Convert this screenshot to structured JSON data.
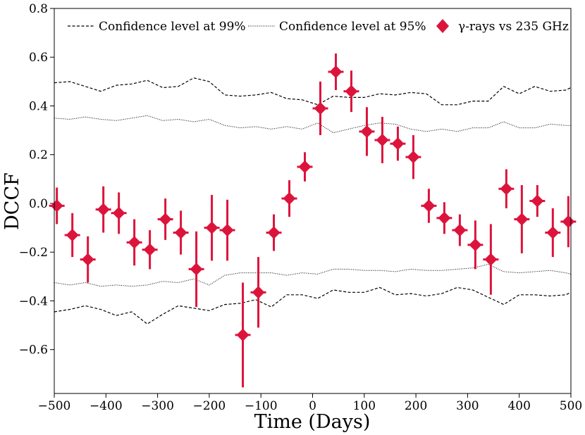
{
  "chart_data": {
    "type": "scatter",
    "title": "",
    "xlabel": "Time (Days)",
    "ylabel": "DCCF",
    "xlim": [
      -500,
      500
    ],
    "ylim": [
      -0.78,
      0.8
    ],
    "x_ticks": [
      -500,
      -400,
      -300,
      -200,
      -100,
      0,
      100,
      200,
      300,
      400,
      500
    ],
    "x_tick_labels": [
      "−500",
      "−400",
      "−300",
      "−200",
      "−100",
      "0",
      "100",
      "200",
      "300",
      "400",
      "500"
    ],
    "y_ticks": [
      -0.6,
      -0.4,
      -0.2,
      0.0,
      0.2,
      0.4,
      0.6,
      0.8
    ],
    "y_tick_labels": [
      "−0.6",
      "−0.4",
      "−0.2",
      "0.0",
      "0.2",
      "0.4",
      "0.6",
      "0.8"
    ],
    "grid": false,
    "legend_position": "top",
    "legend": [
      {
        "label": "Confidence level at 99%",
        "style": "dashed"
      },
      {
        "label": "Confidence level at 95%",
        "style": "dotted"
      },
      {
        "label": "γ-rays vs 235 GHz",
        "style": "diamond"
      }
    ],
    "colors": {
      "points": "#dc143c",
      "lines": "#000000"
    },
    "x_error_half_width": 15,
    "series": [
      {
        "name": "γ-rays vs 235 GHz",
        "x": [
          -495,
          -465,
          -435,
          -405,
          -375,
          -345,
          -315,
          -285,
          -255,
          -225,
          -195,
          -165,
          -135,
          -105,
          -75,
          -45,
          -15,
          15,
          45,
          75,
          105,
          135,
          165,
          195,
          225,
          255,
          285,
          315,
          345,
          375,
          405,
          435,
          465,
          495
        ],
        "y": [
          -0.01,
          -0.13,
          -0.23,
          -0.025,
          -0.04,
          -0.16,
          -0.19,
          -0.065,
          -0.12,
          -0.27,
          -0.1,
          -0.11,
          -0.54,
          -0.365,
          -0.12,
          0.02,
          0.15,
          0.39,
          0.54,
          0.46,
          0.295,
          0.26,
          0.245,
          0.19,
          -0.01,
          -0.06,
          -0.11,
          -0.17,
          -0.23,
          0.06,
          -0.065,
          0.01,
          -0.12,
          -0.075
        ],
        "y_err": [
          0.075,
          0.09,
          0.095,
          0.095,
          0.085,
          0.095,
          0.08,
          0.085,
          0.09,
          0.155,
          0.135,
          0.125,
          0.215,
          0.145,
          0.075,
          0.075,
          0.06,
          0.11,
          0.075,
          0.085,
          0.1,
          0.095,
          0.07,
          0.09,
          0.07,
          0.065,
          0.065,
          0.1,
          0.145,
          0.08,
          0.14,
          0.065,
          0.1,
          0.105
        ]
      },
      {
        "name": "Confidence level at 99% (upper)",
        "x": [
          -500,
          -470,
          -440,
          -410,
          -380,
          -350,
          -320,
          -290,
          -260,
          -230,
          -200,
          -170,
          -140,
          -110,
          -80,
          -50,
          -20,
          10,
          40,
          70,
          100,
          130,
          160,
          190,
          220,
          250,
          280,
          310,
          340,
          370,
          400,
          430,
          460,
          490,
          500
        ],
        "y": [
          0.495,
          0.5,
          0.48,
          0.46,
          0.485,
          0.49,
          0.505,
          0.475,
          0.48,
          0.515,
          0.5,
          0.445,
          0.44,
          0.445,
          0.455,
          0.43,
          0.425,
          0.405,
          0.44,
          0.435,
          0.435,
          0.45,
          0.445,
          0.455,
          0.45,
          0.405,
          0.405,
          0.42,
          0.42,
          0.48,
          0.45,
          0.48,
          0.46,
          0.465,
          0.475
        ]
      },
      {
        "name": "Confidence level at 99% (lower)",
        "x": [
          -500,
          -470,
          -440,
          -410,
          -380,
          -350,
          -320,
          -290,
          -260,
          -230,
          -200,
          -170,
          -140,
          -110,
          -80,
          -50,
          -20,
          10,
          40,
          70,
          100,
          130,
          160,
          190,
          220,
          250,
          280,
          310,
          340,
          370,
          400,
          430,
          460,
          490,
          500
        ],
        "y": [
          -0.445,
          -0.435,
          -0.42,
          -0.435,
          -0.46,
          -0.445,
          -0.495,
          -0.455,
          -0.42,
          -0.43,
          -0.44,
          -0.415,
          -0.41,
          -0.395,
          -0.425,
          -0.375,
          -0.375,
          -0.39,
          -0.355,
          -0.365,
          -0.365,
          -0.345,
          -0.375,
          -0.37,
          -0.38,
          -0.37,
          -0.345,
          -0.355,
          -0.385,
          -0.415,
          -0.375,
          -0.375,
          -0.38,
          -0.375,
          -0.365
        ]
      },
      {
        "name": "Confidence level at 95% (upper)",
        "x": [
          -500,
          -470,
          -440,
          -410,
          -380,
          -350,
          -320,
          -290,
          -260,
          -230,
          -200,
          -170,
          -140,
          -110,
          -80,
          -50,
          -20,
          10,
          40,
          70,
          100,
          130,
          160,
          190,
          220,
          250,
          280,
          310,
          340,
          370,
          400,
          430,
          460,
          490,
          500
        ],
        "y": [
          0.35,
          0.345,
          0.355,
          0.345,
          0.34,
          0.35,
          0.36,
          0.34,
          0.345,
          0.335,
          0.345,
          0.32,
          0.31,
          0.315,
          0.305,
          0.315,
          0.305,
          0.33,
          0.29,
          0.305,
          0.32,
          0.33,
          0.325,
          0.305,
          0.295,
          0.305,
          0.295,
          0.31,
          0.31,
          0.335,
          0.31,
          0.31,
          0.325,
          0.32,
          0.32
        ]
      },
      {
        "name": "Confidence level at 95% (lower)",
        "x": [
          -500,
          -470,
          -440,
          -410,
          -380,
          -350,
          -320,
          -290,
          -260,
          -230,
          -200,
          -170,
          -140,
          -110,
          -80,
          -50,
          -20,
          10,
          40,
          70,
          100,
          130,
          160,
          190,
          220,
          250,
          280,
          310,
          340,
          370,
          400,
          430,
          460,
          490,
          500
        ],
        "y": [
          -0.325,
          -0.335,
          -0.325,
          -0.34,
          -0.335,
          -0.34,
          -0.335,
          -0.32,
          -0.325,
          -0.31,
          -0.335,
          -0.295,
          -0.285,
          -0.285,
          -0.285,
          -0.295,
          -0.285,
          -0.29,
          -0.27,
          -0.27,
          -0.275,
          -0.275,
          -0.28,
          -0.27,
          -0.275,
          -0.275,
          -0.27,
          -0.265,
          -0.25,
          -0.28,
          -0.285,
          -0.28,
          -0.275,
          -0.285,
          -0.29
        ]
      }
    ]
  }
}
